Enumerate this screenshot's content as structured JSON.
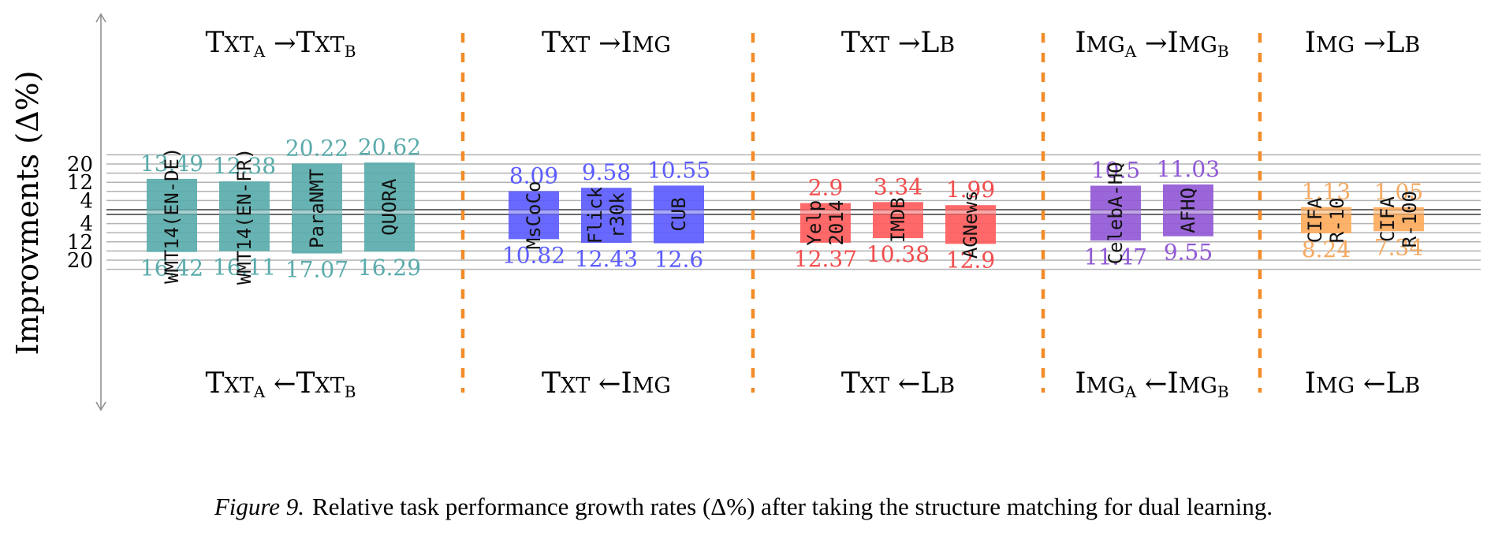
{
  "chart_data": {
    "type": "bar",
    "ylabel": "Improvments (Δ%)",
    "y_ticks": [
      "20",
      "12",
      "4",
      "4",
      "12",
      "20"
    ],
    "y_scale_max": 20,
    "grid": true,
    "groups": [
      {
        "top_title": {
          "main": "Txt",
          "sub": "A",
          "arrow": "→",
          "main2": "Txt",
          "sub2": "B"
        },
        "bottom_title": {
          "main": "Txt",
          "sub": "A",
          "arrow": "←",
          "main2": "Txt",
          "sub2": "B"
        },
        "color": "#5aabab",
        "label_color": "#5aabab",
        "bars": [
          {
            "name": "WMT14(EN-DE)",
            "lines": [
              "WMT14(EN-DE)"
            ],
            "up": 13.49,
            "down": 16.42
          },
          {
            "name": "WMT14(EN-FR)",
            "lines": [
              "WMT14(EN-FR)"
            ],
            "up": 12.38,
            "down": 16.11
          },
          {
            "name": "ParaNMT",
            "lines": [
              "ParaNMT"
            ],
            "up": 20.22,
            "down": 17.07
          },
          {
            "name": "QUORA",
            "lines": [
              "QUORA"
            ],
            "up": 20.62,
            "down": 16.29
          }
        ]
      },
      {
        "top_title": {
          "main": "Txt",
          "sub": "",
          "arrow": "→",
          "main2": "Img",
          "sub2": ""
        },
        "bottom_title": {
          "main": "Txt",
          "sub": "",
          "arrow": "←",
          "main2": "Img",
          "sub2": ""
        },
        "color": "#5c5cff",
        "label_color": "#5c5cff",
        "bars": [
          {
            "name": "MsCoCo",
            "lines": [
              "MsCoCo"
            ],
            "up": 8.09,
            "down": 10.82
          },
          {
            "name": "Flickr30k",
            "lines": [
              "Flick",
              "r30k"
            ],
            "up": 9.58,
            "down": 12.43
          },
          {
            "name": "CUB",
            "lines": [
              "CUB"
            ],
            "up": 10.55,
            "down": 12.6
          }
        ]
      },
      {
        "top_title": {
          "main": "Txt",
          "sub": "",
          "arrow": "→",
          "main2": "Lb",
          "sub2": ""
        },
        "bottom_title": {
          "main": "Txt",
          "sub": "",
          "arrow": "←",
          "main2": "Lb",
          "sub2": ""
        },
        "color": "#ff5c5c",
        "label_color": "#f24d4d",
        "bars": [
          {
            "name": "Yelp 2014",
            "lines": [
              "Yelp",
              "2014"
            ],
            "up": 2.9,
            "down": 12.37
          },
          {
            "name": "IMDB",
            "lines": [
              "IMDB"
            ],
            "up": 3.34,
            "down": 10.38
          },
          {
            "name": "AGNews",
            "lines": [
              "AGNews"
            ],
            "up": 1.99,
            "down": 12.9
          }
        ]
      },
      {
        "top_title": {
          "main": "Img",
          "sub": "A",
          "arrow": "→",
          "main2": "Img",
          "sub2": "B"
        },
        "bottom_title": {
          "main": "Img",
          "sub": "A",
          "arrow": "←",
          "main2": "Img",
          "sub2": "B"
        },
        "color": "#9159d6",
        "label_color": "#9159d6",
        "bars": [
          {
            "name": "CelebA-HQ",
            "lines": [
              "CelebA-HQ"
            ],
            "up": 10.5,
            "down": 11.47
          },
          {
            "name": "AFHQ",
            "lines": [
              "AFHQ"
            ],
            "up": 11.03,
            "down": 9.55
          }
        ]
      },
      {
        "top_title": {
          "main": "Img",
          "sub": "",
          "arrow": "→",
          "main2": "Lb",
          "sub2": ""
        },
        "bottom_title": {
          "main": "Img",
          "sub": "",
          "arrow": "←",
          "main2": "Lb",
          "sub2": ""
        },
        "color": "#ffab5c",
        "label_color": "#f5aa62",
        "bars": [
          {
            "name": "CIFAR-10",
            "lines": [
              "CIFA",
              "R-10"
            ],
            "up": 1.13,
            "down": 8.24
          },
          {
            "name": "CIFAR-100",
            "lines": [
              "CIFA",
              "R-100"
            ],
            "up": 1.05,
            "down": 7.34
          }
        ]
      }
    ],
    "separator_color": "#f28c28"
  },
  "caption": {
    "figure_label": "Figure 9.",
    "text": "Relative task performance growth rates (Δ%) after taking the structure matching for dual learning."
  }
}
